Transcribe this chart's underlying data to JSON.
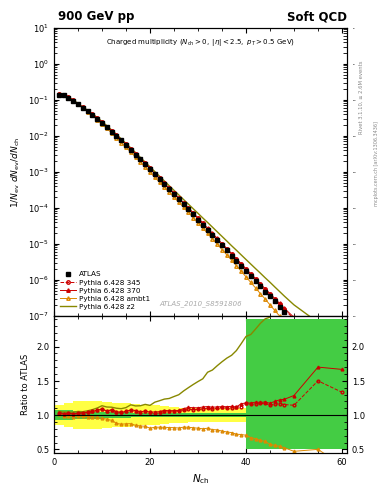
{
  "title_left": "900 GeV pp",
  "title_right": "Soft QCD",
  "subtitle": "Charged multiplicity (N_{ch} > 0, |\\eta| < 2.5, p_T > 0.5 GeV)",
  "watermark": "ATLAS_2010_S8591806",
  "right_label_top": "Rivet 3.1.10, ≥ 2.6M events",
  "right_label_bot": "mcplots.cern.ch [arXiv:1306.34 36]",
  "ylabel_main": "1/N_{ev} dN_{ev}/dN_{ch}",
  "ylabel_ratio": "Ratio to ATLAS",
  "xlabel": "N_{ch}",
  "xlim": [
    0,
    61
  ],
  "ylim_main": [
    1e-07,
    10
  ],
  "ylim_ratio": [
    0.45,
    2.45
  ],
  "ratio_yticks": [
    0.5,
    1.0,
    1.5,
    2.0
  ],
  "atlas_color": "#000000",
  "p345_color": "#cc0000",
  "p370_color": "#cc0000",
  "pambt1_color": "#dd8800",
  "pz2_color": "#888800",
  "green_band_color": "#44cc44",
  "yellow_band_color": "#ffff44",
  "atlas_nch": [
    1,
    2,
    3,
    4,
    5,
    6,
    7,
    8,
    9,
    10,
    11,
    12,
    13,
    14,
    15,
    16,
    17,
    18,
    19,
    20,
    21,
    22,
    23,
    24,
    25,
    26,
    27,
    28,
    29,
    30,
    31,
    32,
    33,
    34,
    35,
    36,
    37,
    38,
    39,
    40,
    41,
    42,
    43,
    44,
    45,
    46,
    47,
    48,
    50,
    55,
    60
  ],
  "atlas_y": [
    0.14,
    0.135,
    0.115,
    0.095,
    0.075,
    0.06,
    0.048,
    0.038,
    0.029,
    0.022,
    0.017,
    0.013,
    0.01,
    0.0075,
    0.0055,
    0.004,
    0.003,
    0.0022,
    0.0016,
    0.0012,
    0.00085,
    0.00062,
    0.00045,
    0.00033,
    0.00024,
    0.000175,
    0.000125,
    9e-05,
    6.5e-05,
    4.7e-05,
    3.4e-05,
    2.4e-05,
    1.75e-05,
    1.25e-05,
    9e-06,
    6.5e-06,
    4.7e-06,
    3.4e-06,
    2.4e-06,
    1.7e-06,
    1.25e-06,
    9e-07,
    6.5e-07,
    4.7e-07,
    3.5e-07,
    2.5e-07,
    1.8e-07,
    1.3e-07,
    7e-08,
    1e-08,
    3e-09
  ],
  "p345_nch": [
    1,
    2,
    3,
    4,
    5,
    6,
    7,
    8,
    9,
    10,
    11,
    12,
    13,
    14,
    15,
    16,
    17,
    18,
    19,
    20,
    21,
    22,
    23,
    24,
    25,
    26,
    27,
    28,
    29,
    30,
    31,
    32,
    33,
    34,
    35,
    36,
    37,
    38,
    39,
    40,
    41,
    42,
    43,
    44,
    45,
    46,
    47,
    48,
    50,
    55,
    60
  ],
  "p345_y": [
    0.145,
    0.138,
    0.118,
    0.097,
    0.077,
    0.062,
    0.05,
    0.04,
    0.031,
    0.024,
    0.018,
    0.014,
    0.0105,
    0.0078,
    0.0058,
    0.0043,
    0.0032,
    0.0023,
    0.0017,
    0.00125,
    0.00088,
    0.00065,
    0.00048,
    0.00035,
    0.000255,
    0.000185,
    0.000135,
    9.8e-05,
    7e-05,
    5.1e-05,
    3.7e-05,
    2.65e-05,
    1.9e-05,
    1.38e-05,
    1e-05,
    7.2e-06,
    5.2e-06,
    3.8e-06,
    2.7e-06,
    2e-06,
    1.45e-06,
    1.05e-06,
    7.6e-07,
    5.5e-07,
    4e-07,
    2.9e-07,
    2.1e-07,
    1.5e-07,
    8e-08,
    1.5e-08,
    4e-09
  ],
  "p370_nch": [
    1,
    2,
    3,
    4,
    5,
    6,
    7,
    8,
    9,
    10,
    11,
    12,
    13,
    14,
    15,
    16,
    17,
    18,
    19,
    20,
    21,
    22,
    23,
    24,
    25,
    26,
    27,
    28,
    29,
    30,
    31,
    32,
    33,
    34,
    35,
    36,
    37,
    38,
    39,
    40,
    41,
    42,
    43,
    44,
    45,
    46,
    47,
    48,
    50,
    55,
    60
  ],
  "p370_y": [
    0.145,
    0.138,
    0.118,
    0.097,
    0.077,
    0.062,
    0.05,
    0.04,
    0.031,
    0.024,
    0.018,
    0.014,
    0.0105,
    0.0078,
    0.0058,
    0.0043,
    0.0032,
    0.0023,
    0.0017,
    0.00125,
    0.00089,
    0.00065,
    0.00048,
    0.00035,
    0.000255,
    0.000187,
    0.000137,
    0.0001,
    7.2e-05,
    5.2e-05,
    3.8e-05,
    2.7e-05,
    1.95e-05,
    1.4e-05,
    1.01e-05,
    7.3e-06,
    5.3e-06,
    3.8e-06,
    2.8e-06,
    2e-06,
    1.47e-06,
    1.07e-06,
    7.7e-07,
    5.6e-07,
    4.1e-07,
    3e-07,
    2.2e-07,
    1.6e-07,
    9e-08,
    1.7e-08,
    5e-09
  ],
  "pambt1_nch": [
    1,
    2,
    3,
    4,
    5,
    6,
    7,
    8,
    9,
    10,
    11,
    12,
    13,
    14,
    15,
    16,
    17,
    18,
    19,
    20,
    21,
    22,
    23,
    24,
    25,
    26,
    27,
    28,
    29,
    30,
    31,
    32,
    33,
    34,
    35,
    36,
    37,
    38,
    39,
    40,
    41,
    42,
    43,
    44,
    45,
    46,
    47,
    48,
    50,
    55,
    60
  ],
  "pambt1_y": [
    0.142,
    0.134,
    0.114,
    0.093,
    0.074,
    0.059,
    0.047,
    0.037,
    0.028,
    0.021,
    0.016,
    0.012,
    0.0088,
    0.0065,
    0.0048,
    0.0035,
    0.00255,
    0.00185,
    0.00134,
    0.00097,
    0.0007,
    0.00051,
    0.00037,
    0.00027,
    0.000196,
    0.000142,
    0.000103,
    7.4e-05,
    5.3e-05,
    3.8e-05,
    2.72e-05,
    1.94e-05,
    1.38e-05,
    9.8e-06,
    6.9e-06,
    4.9e-06,
    3.5e-06,
    2.45e-06,
    1.72e-06,
    1.2e-06,
    8.4e-07,
    5.9e-07,
    4.1e-07,
    2.9e-07,
    2e-07,
    1.4e-07,
    9.8e-08,
    6.8e-08,
    3.3e-08,
    5e-09,
    8e-10
  ],
  "pz2_nch": [
    1,
    2,
    3,
    4,
    5,
    6,
    7,
    8,
    9,
    10,
    11,
    12,
    13,
    14,
    15,
    16,
    17,
    18,
    19,
    20,
    21,
    22,
    23,
    24,
    25,
    26,
    27,
    28,
    29,
    30,
    31,
    32,
    33,
    34,
    35,
    36,
    37,
    38,
    39,
    40,
    41,
    42,
    43,
    44,
    45,
    46,
    47,
    48,
    50,
    55,
    60
  ],
  "pz2_y": [
    0.148,
    0.141,
    0.12,
    0.099,
    0.079,
    0.063,
    0.051,
    0.041,
    0.032,
    0.025,
    0.019,
    0.0145,
    0.011,
    0.0082,
    0.0061,
    0.0046,
    0.0034,
    0.0025,
    0.00185,
    0.00137,
    0.00101,
    0.00075,
    0.000555,
    0.00041,
    0.000305,
    0.000227,
    0.000169,
    0.000126,
    9.4e-05,
    7e-05,
    5.2e-05,
    3.9e-05,
    2.9e-05,
    2.15e-05,
    1.6e-05,
    1.19e-05,
    8.8e-06,
    6.6e-06,
    4.9e-06,
    3.65e-06,
    2.72e-06,
    2.03e-06,
    1.52e-06,
    1.13e-06,
    8.5e-07,
    6.3e-07,
    4.7e-07,
    3.5e-07,
    2e-07,
    6.5e-08,
    2e-08
  ],
  "band_edges": [
    0,
    2,
    4,
    6,
    8,
    10,
    12,
    14,
    16,
    18,
    20,
    22,
    24,
    26,
    28,
    30,
    32,
    34,
    36,
    38,
    40,
    42,
    44,
    46,
    48,
    50,
    55,
    61
  ],
  "green_ylo": [
    0.93,
    0.93,
    0.94,
    0.95,
    0.95,
    0.96,
    0.96,
    0.96,
    0.97,
    0.97,
    0.97,
    0.97,
    0.97,
    0.97,
    0.97,
    0.97,
    0.97,
    0.97,
    0.97,
    0.97,
    0.5,
    0.5,
    0.5,
    0.5,
    0.5,
    0.5,
    0.5
  ],
  "green_yhi": [
    1.07,
    1.07,
    1.06,
    1.05,
    1.05,
    1.04,
    1.04,
    1.04,
    1.03,
    1.03,
    1.03,
    1.03,
    1.03,
    1.03,
    1.03,
    1.03,
    1.03,
    1.03,
    1.03,
    1.03,
    2.4,
    2.4,
    2.4,
    2.4,
    2.4,
    2.4,
    2.4
  ],
  "yellow_ylo": [
    0.85,
    0.82,
    0.8,
    0.8,
    0.8,
    0.81,
    0.82,
    0.83,
    0.84,
    0.85,
    0.86,
    0.87,
    0.88,
    0.89,
    0.9,
    0.9,
    0.9,
    0.9,
    0.9,
    0.9,
    0.5,
    0.5,
    0.5,
    0.5,
    0.5,
    0.5,
    0.5
  ],
  "yellow_yhi": [
    1.15,
    1.18,
    1.2,
    1.2,
    1.2,
    1.19,
    1.18,
    1.17,
    1.16,
    1.15,
    1.14,
    1.13,
    1.12,
    1.11,
    1.1,
    1.1,
    1.1,
    1.1,
    1.1,
    1.1,
    2.4,
    2.4,
    2.4,
    2.4,
    2.4,
    2.4,
    2.4
  ]
}
